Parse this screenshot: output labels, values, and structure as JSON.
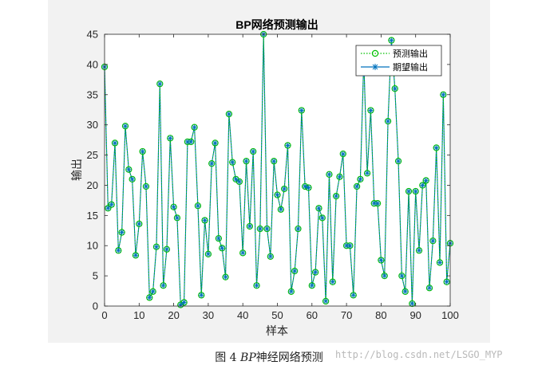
{
  "chart_data": {
    "type": "line",
    "title": "BP网络预测输出",
    "xlabel": "样本",
    "ylabel": "输出",
    "xlim": [
      0,
      100
    ],
    "ylim": [
      0,
      45
    ],
    "x_ticks": [
      0,
      10,
      20,
      30,
      40,
      50,
      60,
      70,
      80,
      90,
      100
    ],
    "y_ticks": [
      0,
      5,
      10,
      15,
      20,
      25,
      30,
      35,
      40,
      45
    ],
    "grid": false,
    "legend_position": "top-right",
    "series": [
      {
        "name": "预测输出",
        "style": "dotted line with circle markers",
        "color": "#00c000",
        "values": [
          39.6,
          16.2,
          16.8,
          27.0,
          9.2,
          12.2,
          29.8,
          22.6,
          21.0,
          8.4,
          13.6,
          25.6,
          19.8,
          1.4,
          2.4,
          9.8,
          36.8,
          3.4,
          9.4,
          27.8,
          16.4,
          14.6,
          0.2,
          0.6,
          27.2,
          27.2,
          29.6,
          16.6,
          1.8,
          14.2,
          8.6,
          23.6,
          27.0,
          11.2,
          9.6,
          4.8,
          31.8,
          23.8,
          21.0,
          20.6,
          8.8,
          24.0,
          13.2,
          25.6,
          3.4,
          12.8,
          45.0,
          12.8,
          8.2,
          24.0,
          18.4,
          16.0,
          19.4,
          26.6,
          2.4,
          5.8,
          12.8,
          32.4,
          19.8,
          19.6,
          3.4,
          5.6,
          16.2,
          14.6,
          0.8,
          21.8,
          4.0,
          18.2,
          21.4,
          25.2,
          10.0,
          10.0,
          1.8,
          19.8,
          21.0,
          40.8,
          22.0,
          32.4,
          17.0,
          17.0,
          7.6,
          5.0,
          30.6,
          44.0,
          36.0,
          24.0,
          5.0,
          2.4,
          19.0,
          0.4,
          19.0,
          9.2,
          20.0,
          20.8,
          3.0,
          10.8,
          26.2,
          7.2,
          35.0,
          4.0,
          10.4
        ]
      },
      {
        "name": "期望输出",
        "style": "solid line with asterisk markers",
        "color": "#0072bd",
        "values": [
          39.6,
          16.2,
          16.8,
          27.0,
          9.2,
          12.2,
          29.8,
          22.6,
          21.0,
          8.4,
          13.6,
          25.6,
          19.8,
          1.4,
          2.4,
          9.8,
          36.8,
          3.4,
          9.4,
          27.8,
          16.4,
          14.6,
          0.2,
          0.6,
          27.2,
          27.2,
          29.6,
          16.6,
          1.8,
          14.2,
          8.6,
          23.6,
          27.0,
          11.2,
          9.6,
          4.8,
          31.8,
          23.8,
          21.0,
          20.6,
          8.8,
          24.0,
          13.2,
          25.6,
          3.4,
          12.8,
          45.0,
          12.8,
          8.2,
          24.0,
          18.4,
          16.0,
          19.4,
          26.6,
          2.4,
          5.8,
          12.8,
          32.4,
          19.8,
          19.6,
          3.4,
          5.6,
          16.2,
          14.6,
          0.8,
          21.8,
          4.0,
          18.2,
          21.4,
          25.2,
          10.0,
          10.0,
          1.8,
          19.8,
          21.0,
          40.8,
          22.0,
          32.4,
          17.0,
          17.0,
          7.6,
          5.0,
          30.6,
          44.0,
          36.0,
          24.0,
          5.0,
          2.4,
          19.0,
          0.4,
          19.0,
          9.2,
          20.0,
          20.8,
          3.0,
          10.8,
          26.2,
          7.2,
          35.0,
          4.0,
          10.4
        ]
      }
    ]
  },
  "caption": {
    "prefix": "图 4 ",
    "bp": "BP",
    "suffix": "神经网络预测"
  },
  "watermark": "http://blog.csdn.net/LSGO_MYP"
}
